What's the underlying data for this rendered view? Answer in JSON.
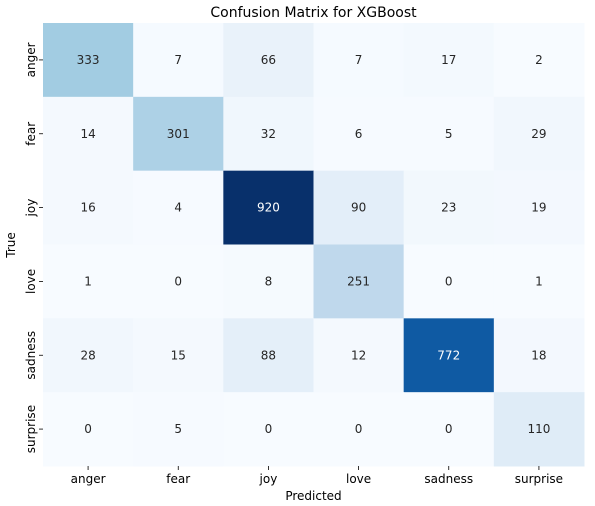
{
  "chart_data": {
    "type": "heatmap",
    "title": "Confusion Matrix for XGBoost",
    "xlabel": "Predicted",
    "ylabel": "True",
    "x_categories": [
      "anger",
      "fear",
      "joy",
      "love",
      "sadness",
      "surprise"
    ],
    "y_categories": [
      "anger",
      "fear",
      "joy",
      "love",
      "sadness",
      "surprise"
    ],
    "values": [
      [
        333,
        7,
        66,
        7,
        17,
        2
      ],
      [
        14,
        301,
        32,
        6,
        5,
        29
      ],
      [
        16,
        4,
        920,
        90,
        23,
        19
      ],
      [
        1,
        0,
        8,
        251,
        0,
        1
      ],
      [
        28,
        15,
        88,
        12,
        772,
        18
      ],
      [
        0,
        5,
        0,
        0,
        0,
        110
      ]
    ],
    "colormap": "Blues",
    "colorbar": false,
    "vmin": 0,
    "vmax": 920
  }
}
